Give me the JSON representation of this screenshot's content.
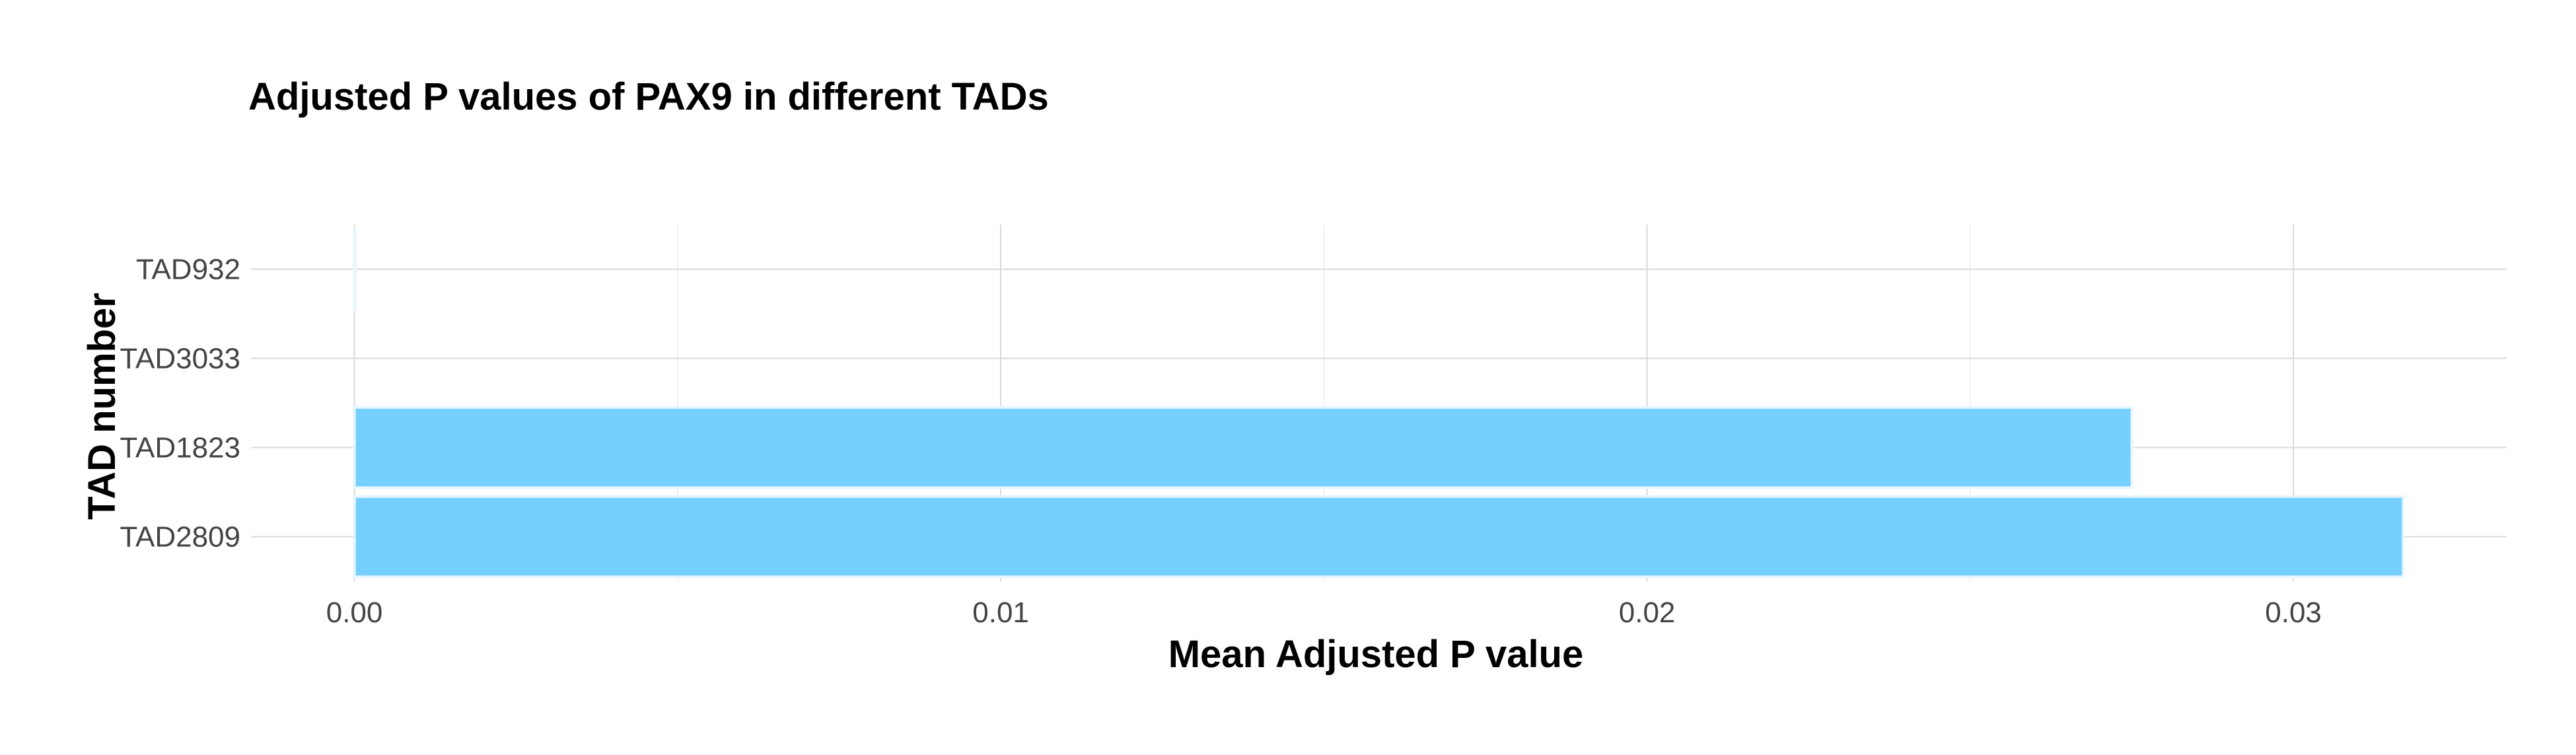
{
  "chart_data": {
    "type": "bar",
    "orientation": "horizontal",
    "title": "Adjusted P values of PAX9 in different TADs",
    "xlabel": "Mean Adjusted P value",
    "ylabel": "TAD number",
    "categories": [
      "TAD932",
      "TAD3033",
      "TAD1823",
      "TAD2809"
    ],
    "values": [
      2e-05,
      0.0,
      0.0275,
      0.0317
    ],
    "xlim": [
      -0.0016,
      0.0333
    ],
    "xticks": [
      0.0,
      0.01,
      0.02,
      0.03
    ],
    "xtick_labels": [
      "0.00",
      "0.01",
      "0.02",
      "0.03"
    ],
    "grid": true,
    "bar_color": "#76d0ff",
    "bar_edge_color": "#e8f6ff",
    "legend": "none"
  }
}
